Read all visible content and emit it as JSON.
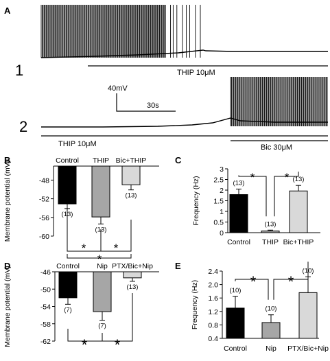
{
  "panel_A": {
    "label": "A",
    "row1_label": "1",
    "row2_label": "2",
    "row1_bar_label": "THIP 10μM",
    "row2_bar1_label": "THIP 10μM",
    "row2_bar2_label": "Bic 30μM",
    "scale_v": "40mV",
    "scale_t": "30s"
  },
  "chart_data": [
    {
      "panel": "B",
      "type": "bar",
      "ylabel": "Membrane potential (mV)",
      "ylim": [
        -60,
        -45
      ],
      "yticks": [
        "-48",
        "-52",
        "-56",
        "-60"
      ],
      "categories": [
        "Control",
        "THIP",
        "Bic+THIP"
      ],
      "values": [
        -53.1,
        -55.9,
        -49.0
      ],
      "errors": [
        1.0,
        1.5,
        1.1
      ],
      "n_labels": [
        "(13)",
        "(13)",
        "(13)"
      ],
      "colors": [
        "#000000",
        "#a6a6a6",
        "#d9d9d9"
      ],
      "significance": [
        "*",
        "*",
        "*"
      ]
    },
    {
      "panel": "C",
      "type": "bar",
      "ylabel": "Frequency (Hz)",
      "ylim": [
        0,
        3
      ],
      "yticks": [
        "0",
        "0.5",
        "1",
        "1.5",
        "2",
        "2.5",
        "3"
      ],
      "categories": [
        "Control",
        "THIP",
        "Bic+THIP"
      ],
      "values": [
        1.79,
        0.08,
        1.96
      ],
      "errors": [
        0.26,
        0.04,
        0.26
      ],
      "n_labels": [
        "(13)",
        "(13)",
        "(13)"
      ],
      "colors": [
        "#000000",
        "#a6a6a6",
        "#d9d9d9"
      ],
      "significance": [
        "*",
        "*"
      ]
    },
    {
      "panel": "D",
      "type": "bar",
      "ylabel": "Membrane potential (mV)",
      "ylim": [
        -62,
        -46
      ],
      "yticks": [
        "-46",
        "-50",
        "-54",
        "-58",
        "-62"
      ],
      "categories": [
        "Control",
        "Nip",
        "PTX/Bic+Nip"
      ],
      "values": [
        -52.0,
        -55.2,
        -47.4
      ],
      "errors": [
        1.5,
        2.0,
        0.8
      ],
      "n_labels": [
        "(7)",
        "(7)",
        "(13)"
      ],
      "colors": [
        "#000000",
        "#a6a6a6",
        "#d9d9d9"
      ],
      "significance": [
        "*",
        "*"
      ]
    },
    {
      "panel": "E",
      "type": "bar",
      "ylabel": "Frequency (Hz)",
      "ylim": [
        0.4,
        2.4
      ],
      "yticks": [
        "0.4",
        "0.8",
        "1.2",
        "1.6",
        "2.0",
        "2.4"
      ],
      "categories": [
        "Control",
        "Nip",
        "PTX/Bic+Nip"
      ],
      "values": [
        1.3,
        0.87,
        1.76
      ],
      "errors": [
        0.35,
        0.23,
        0.47
      ],
      "n_labels": [
        "(10)",
        "(10)",
        "(10)"
      ],
      "colors": [
        "#000000",
        "#a6a6a6",
        "#d9d9d9"
      ],
      "significance": [
        "*",
        "*"
      ]
    }
  ]
}
